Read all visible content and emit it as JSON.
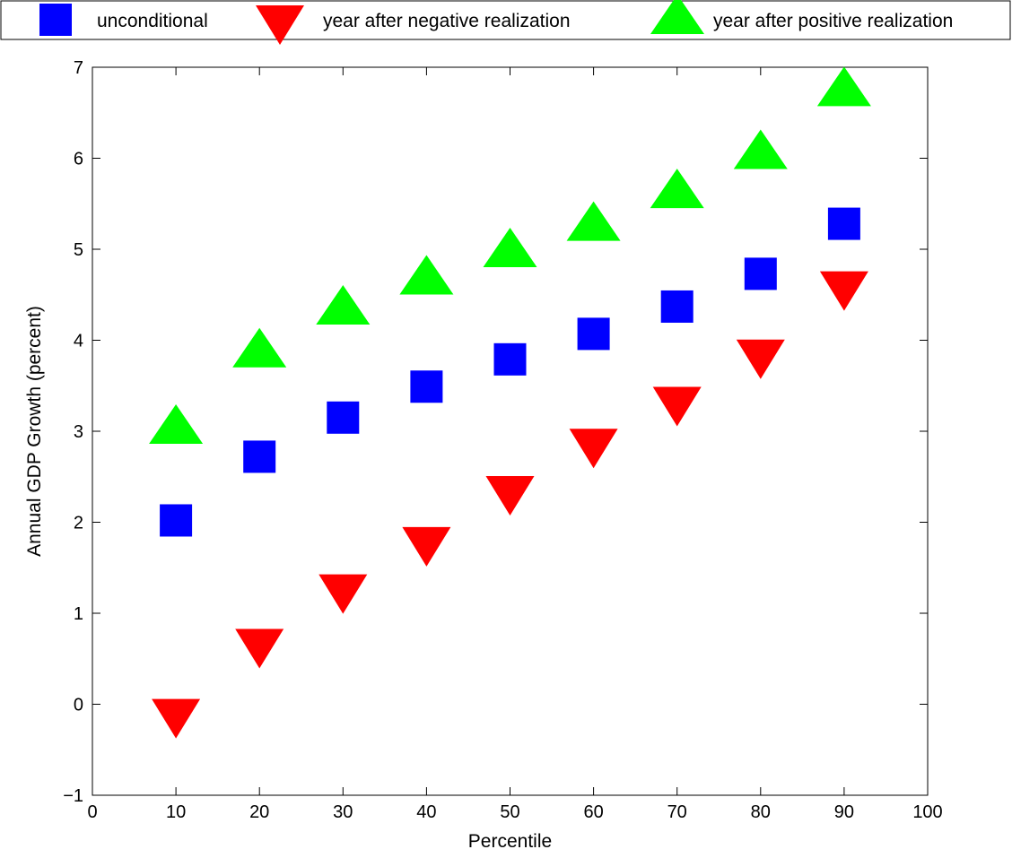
{
  "chart_data": {
    "type": "scatter",
    "title": "",
    "xlabel": "Percentile",
    "ylabel": "Annual GDP Growth (percent)",
    "xlim": [
      0,
      100
    ],
    "ylim": [
      -1,
      7
    ],
    "xticks": [
      0,
      10,
      20,
      30,
      40,
      50,
      60,
      70,
      80,
      90,
      100
    ],
    "yticks": [
      -1,
      0,
      1,
      2,
      3,
      4,
      5,
      6,
      7
    ],
    "ytick_labels": [
      "−1",
      "0",
      "1",
      "2",
      "3",
      "4",
      "5",
      "6",
      "7"
    ],
    "grid": false,
    "legend_position": "top",
    "x": [
      10,
      20,
      30,
      40,
      50,
      60,
      70,
      80,
      90
    ],
    "series": [
      {
        "name": "unconditional",
        "marker": "square",
        "color": "#0000ff",
        "values": [
          2.02,
          2.72,
          3.15,
          3.49,
          3.79,
          4.07,
          4.37,
          4.73,
          5.28
        ]
      },
      {
        "name": "year after negative realization",
        "marker": "triangle-down",
        "color": "#ff0000",
        "values": [
          -0.1,
          0.67,
          1.27,
          1.79,
          2.35,
          2.87,
          3.33,
          3.85,
          4.6
        ]
      },
      {
        "name": "year after positive realization",
        "marker": "triangle-up",
        "color": "#00ff00",
        "values": [
          3.02,
          3.86,
          4.33,
          4.66,
          4.96,
          5.25,
          5.61,
          6.04,
          6.73
        ]
      }
    ]
  }
}
